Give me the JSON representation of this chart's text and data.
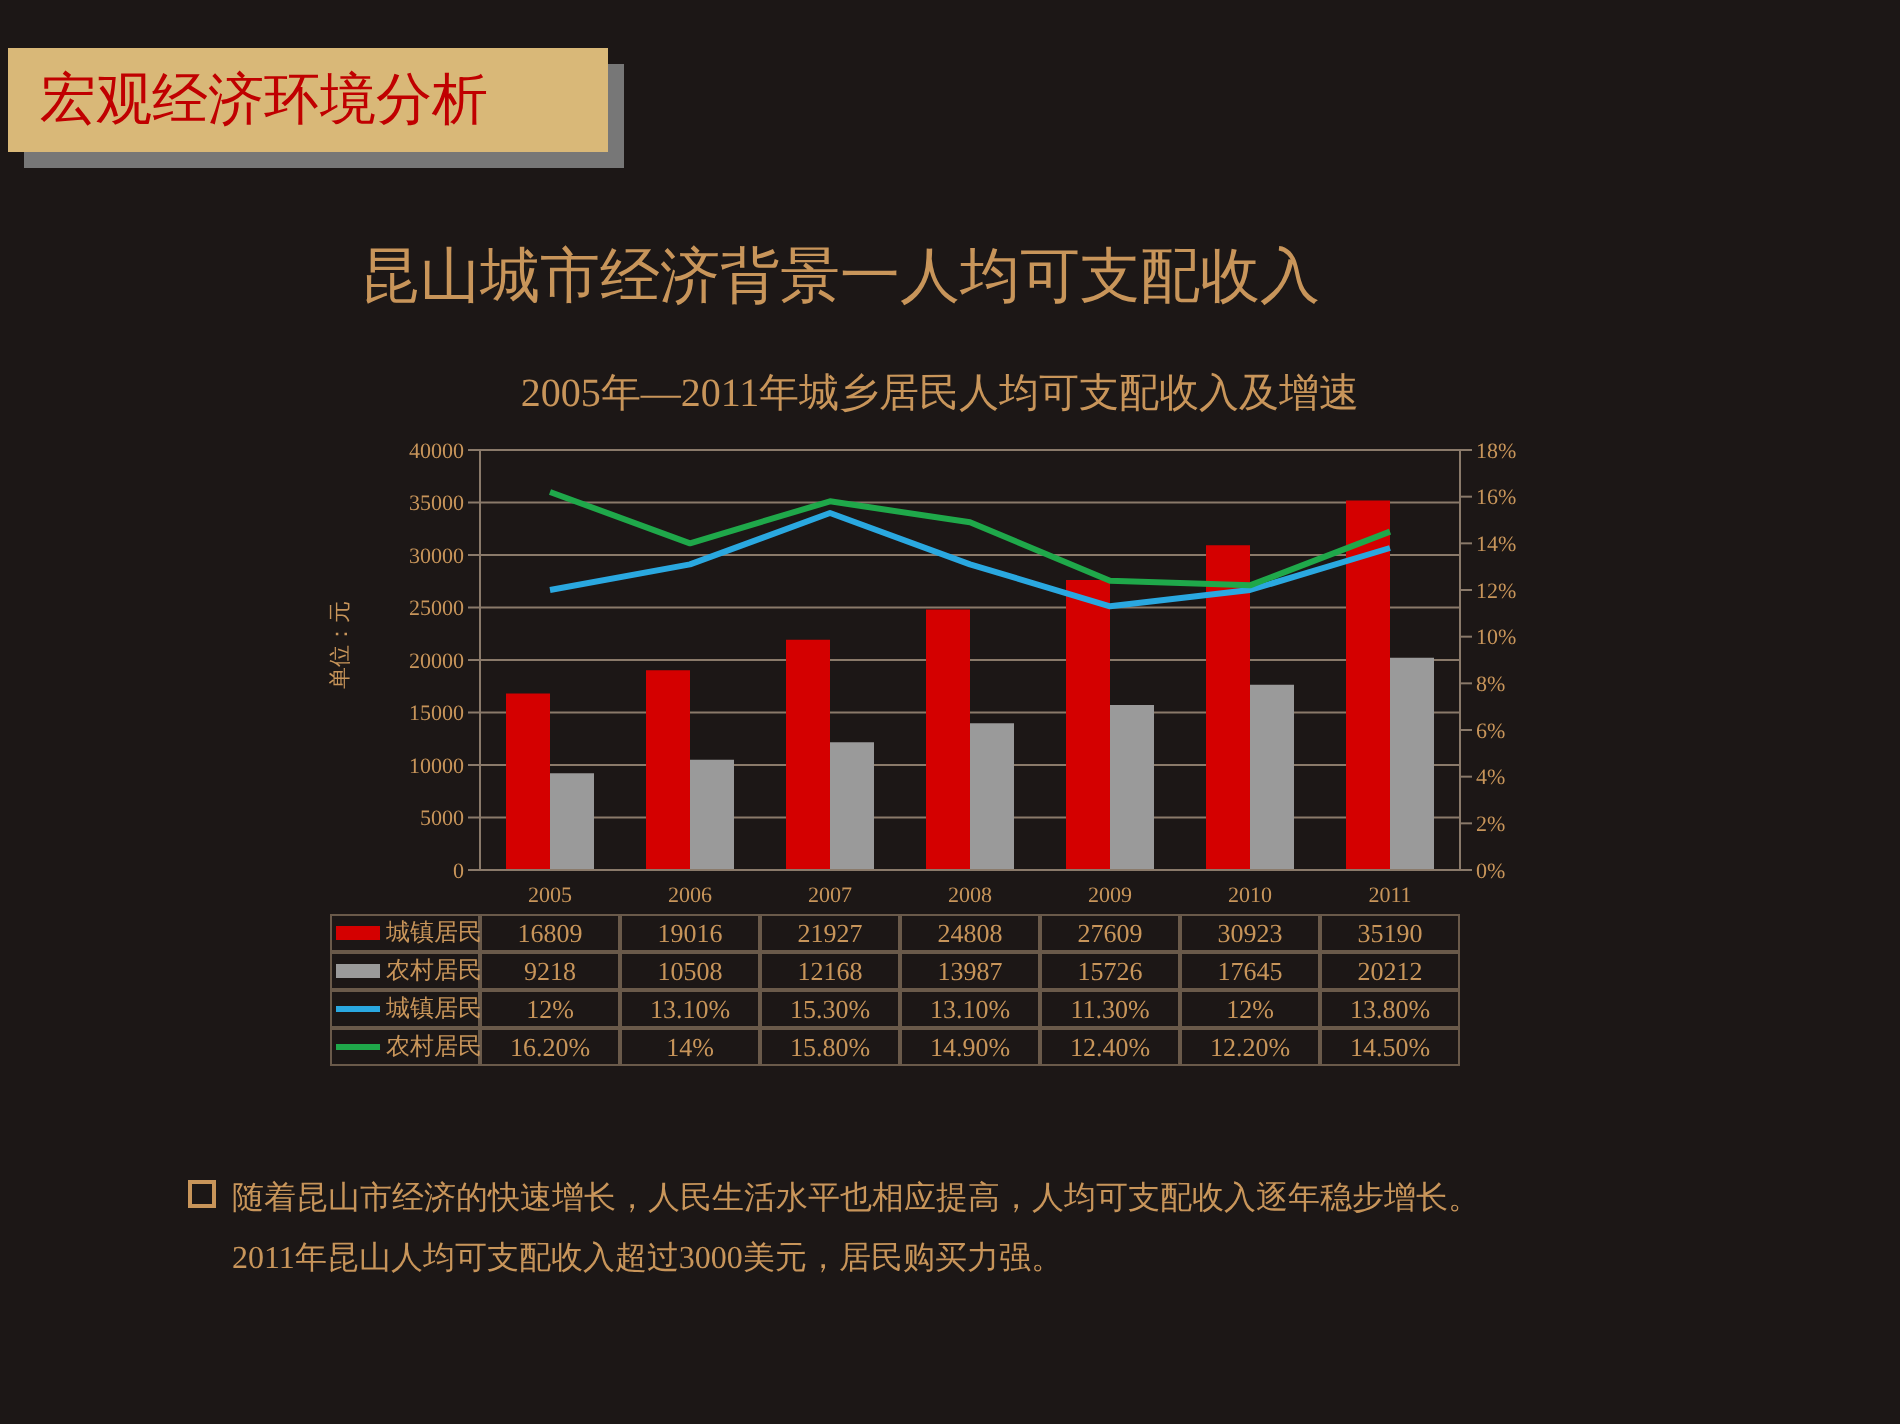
{
  "chart_data": {
    "type": "bar",
    "title": "昆山城市经济背景一人均可支配收入",
    "subtitle": "2005年—2011年城乡居民人均可支配收入及增速",
    "ylabel": "单位：元",
    "annotations": [
      "宏观经济环境分析",
      "随着昆山市经济的快速增长，人民生活水平也相应提高，人均可支配收入逐年稳步增长。",
      "2011年昆山人均可支配收入超过3000美元，居民购买力强。"
    ],
    "categories": [
      "2005",
      "2006",
      "2007",
      "2008",
      "2009",
      "2010",
      "2011"
    ],
    "series": [
      {
        "name": "城镇居民",
        "color": "#d40000",
        "values": [
          16809,
          19016,
          21927,
          24808,
          27609,
          30923,
          35190
        ],
        "value_labels": [
          "16809",
          "19016",
          "21927",
          "24808",
          "27609",
          "30923",
          "35190"
        ]
      },
      {
        "name": "农村居民",
        "color": "#9a9a9a",
        "values": [
          9218,
          10508,
          12168,
          13987,
          15726,
          17645,
          20212
        ],
        "value_labels": [
          "9218",
          "10508",
          "12168",
          "13987",
          "15726",
          "17645",
          "20212"
        ]
      },
      {
        "name": "城镇居民",
        "type": "line",
        "axis": "y2",
        "color": "#2aa8e0",
        "values": [
          12,
          13.1,
          15.3,
          13.1,
          11.3,
          12,
          13.8
        ],
        "value_labels": [
          "12%",
          "13.10%",
          "15.30%",
          "13.10%",
          "11.30%",
          "12%",
          "13.80%"
        ]
      },
      {
        "name": "农村居民",
        "type": "line",
        "axis": "y2",
        "color": "#1fa84a",
        "values": [
          16.2,
          14,
          15.8,
          14.9,
          12.4,
          12.2,
          14.5
        ],
        "value_labels": [
          "16.20%",
          "14%",
          "15.80%",
          "14.90%",
          "12.40%",
          "12.20%",
          "14.50%"
        ]
      }
    ],
    "ylim": [
      0,
      40000
    ],
    "yticks": [
      0,
      5000,
      10000,
      15000,
      20000,
      25000,
      30000,
      35000,
      40000
    ],
    "y2lim": [
      0,
      18
    ],
    "y2ticks": [
      {
        "value": 0,
        "label": "0%"
      },
      {
        "value": 2,
        "label": "2%"
      },
      {
        "value": 4,
        "label": "4%"
      },
      {
        "value": 6,
        "label": "6%"
      },
      {
        "value": 8,
        "label": "8%"
      },
      {
        "value": 10,
        "label": "10%"
      },
      {
        "value": 12,
        "label": "12%"
      },
      {
        "value": 14,
        "label": "14%"
      },
      {
        "value": 16,
        "label": "16%"
      },
      {
        "value": 18,
        "label": "18%"
      }
    ],
    "grid": "y",
    "legend": "bottom left",
    "marker": "none",
    "line_style": "solid"
  }
}
